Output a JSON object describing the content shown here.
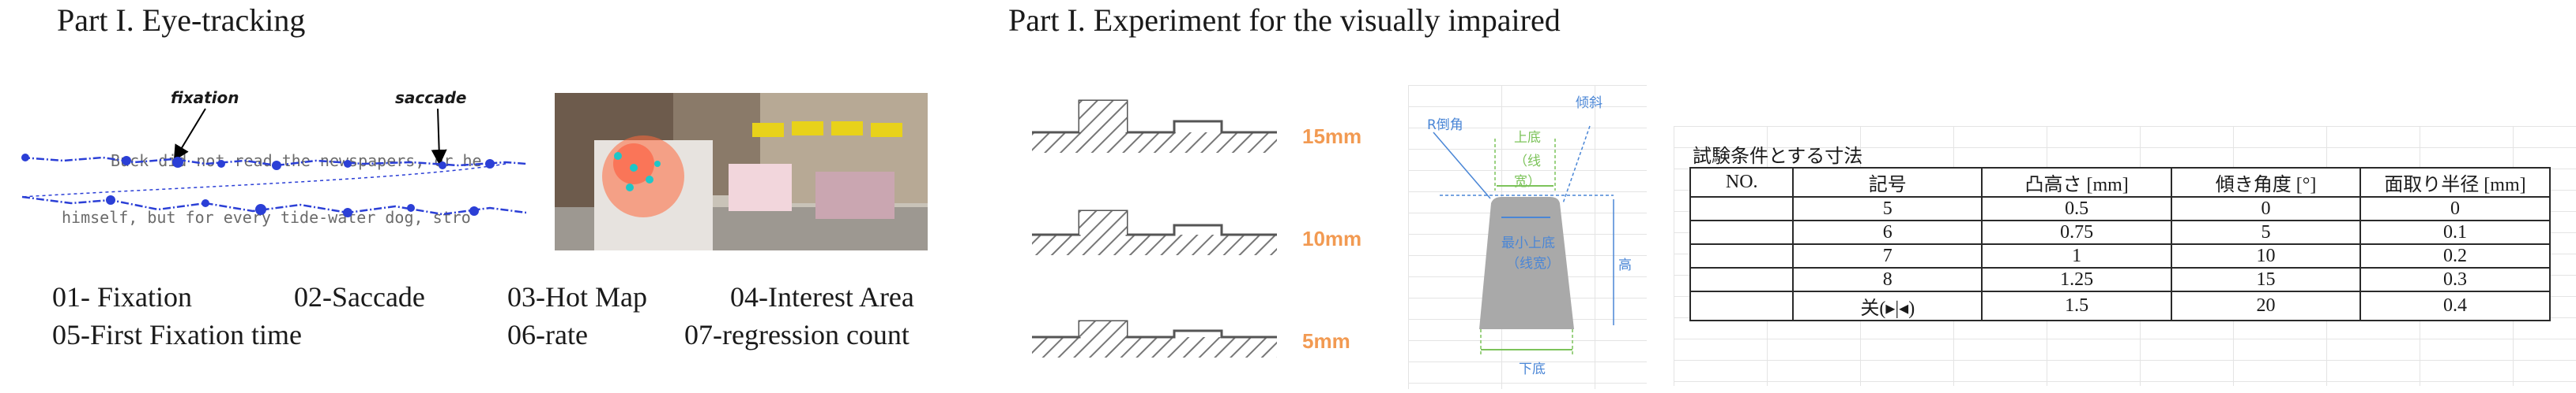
{
  "left_panel": {
    "title": "Part I. Eye-tracking",
    "fixation_label": "fixation",
    "saccade_label": "saccade",
    "text_line_1": "Buck did not read the newspapers, or he",
    "text_line_2": "himself, but for every tide-water dog, stro",
    "terms": [
      "01- Fixation",
      "02-Saccade",
      "03-Hot Map",
      "04-Interest Area",
      "05-First Fixation time",
      "06-rate",
      "07-regression count"
    ]
  },
  "right_panel": {
    "title": "Part I. Experiment for the visually impaired",
    "profile_heights": [
      "15mm",
      "10mm",
      "5mm"
    ],
    "diagram_labels": {
      "chamfer": "R倒角",
      "slope": "倾斜",
      "top_width_1": "上底",
      "top_width_2": "（线",
      "top_width_3": "宽）",
      "min_top_1": "最小上底",
      "min_top_2": "（线宽）",
      "height": "高",
      "bottom": "下底"
    },
    "sheet": {
      "title": "試験条件とする寸法",
      "headers": [
        "NO.",
        "記号",
        "凸高さ [mm]",
        "傾き角度 [°]",
        "面取り半径 [mm]"
      ],
      "rows": [
        [
          "",
          "5",
          "0.5",
          "0",
          "0"
        ],
        [
          "",
          "6",
          "0.75",
          "5",
          "0.1"
        ],
        [
          "",
          "7",
          "1",
          "10",
          "0.2"
        ],
        [
          "",
          "8",
          "1.25",
          "15",
          "0.3"
        ],
        [
          "",
          "关(▸|◂)",
          "1.5",
          "20",
          "0.4"
        ]
      ]
    }
  },
  "colors": {
    "gaze_blue": "#2b3fd6",
    "accent_orange": "#f29a52",
    "hatch_gray": "#777777",
    "diagram_blue": "#4a86d6",
    "diagram_green": "#7cc35a"
  }
}
